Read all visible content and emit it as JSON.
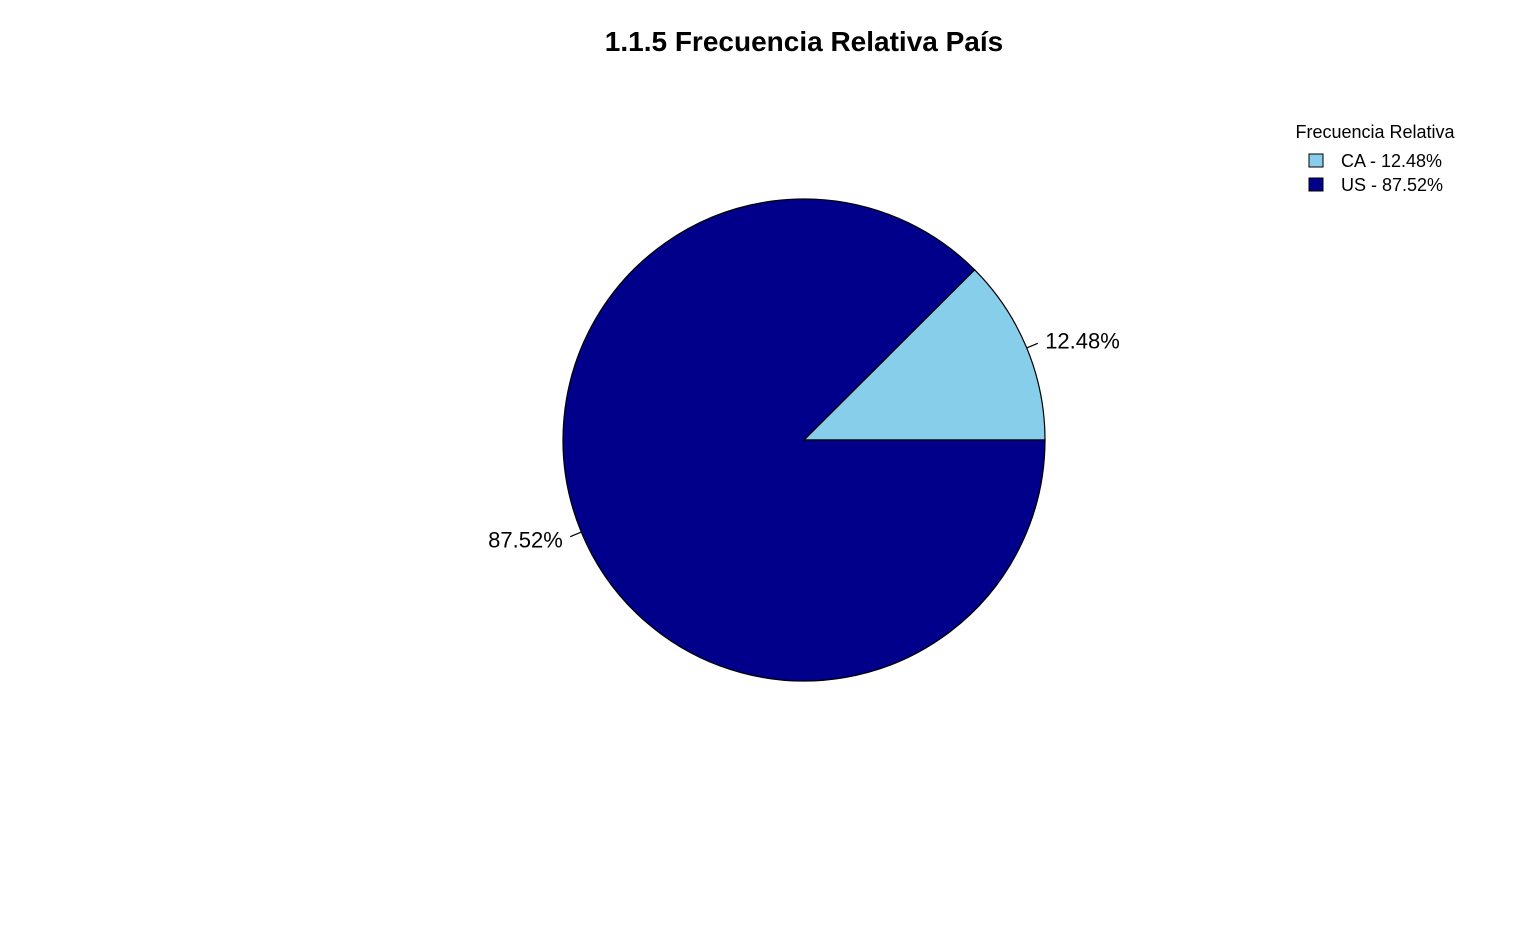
{
  "chart_data": {
    "type": "pie",
    "title": "1.1.5 Frecuencia Relativa País",
    "categories": [
      "CA",
      "US"
    ],
    "values": [
      12.48,
      87.52
    ],
    "slice_labels": [
      "12.48%",
      "87.52%"
    ],
    "colors": [
      "#87CEEB",
      "#00008B"
    ],
    "legend": {
      "title": "Frecuencia Relativa",
      "placement": "top-right",
      "entries": [
        "CA - 12.48%",
        "US - 87.52%"
      ]
    },
    "start_angle_deg": 0,
    "direction": "counterclockwise"
  }
}
